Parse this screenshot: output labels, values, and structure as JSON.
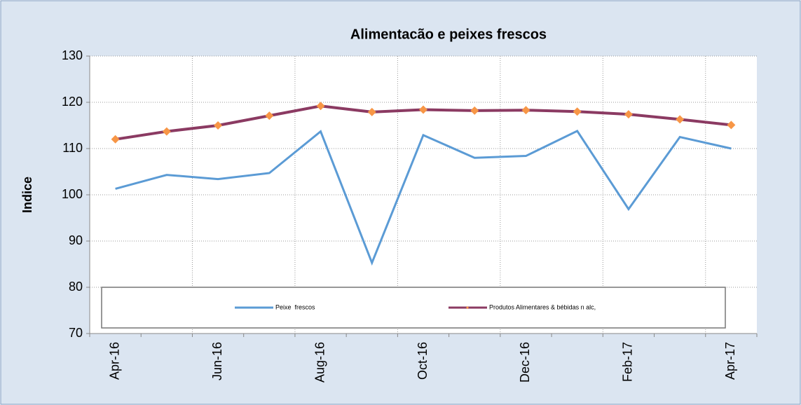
{
  "chart_data": {
    "type": "line",
    "title": "Alimentacão e peixes frescos",
    "y_label": "Indice",
    "categories": [
      "Apr-16",
      null,
      "Jun-16",
      null,
      "Aug-16",
      null,
      "Oct-16",
      null,
      "Dec-16",
      null,
      "Feb-17",
      null,
      "Apr-17"
    ],
    "series": [
      {
        "name": "Peixe  frescos",
        "color": "#5b9bd5",
        "values": [
          101.3,
          104.3,
          103.4,
          104.7,
          113.7,
          85.3,
          112.9,
          108.0,
          108.4,
          113.8,
          96.9,
          112.5,
          110.0
        ]
      },
      {
        "name": "Produtos Alimentares & bébidas n alc,",
        "color": "#8b3a62",
        "marker_color": "#f79646",
        "values": [
          112.0,
          113.7,
          115.0,
          117.1,
          119.2,
          117.9,
          118.4,
          118.2,
          118.3,
          118.0,
          117.4,
          116.3,
          115.1
        ]
      }
    ],
    "ylim": [
      70,
      130
    ],
    "yticks": [
      70,
      80,
      90,
      100,
      110,
      120,
      130
    ],
    "grid": true,
    "legend": "bottom"
  }
}
